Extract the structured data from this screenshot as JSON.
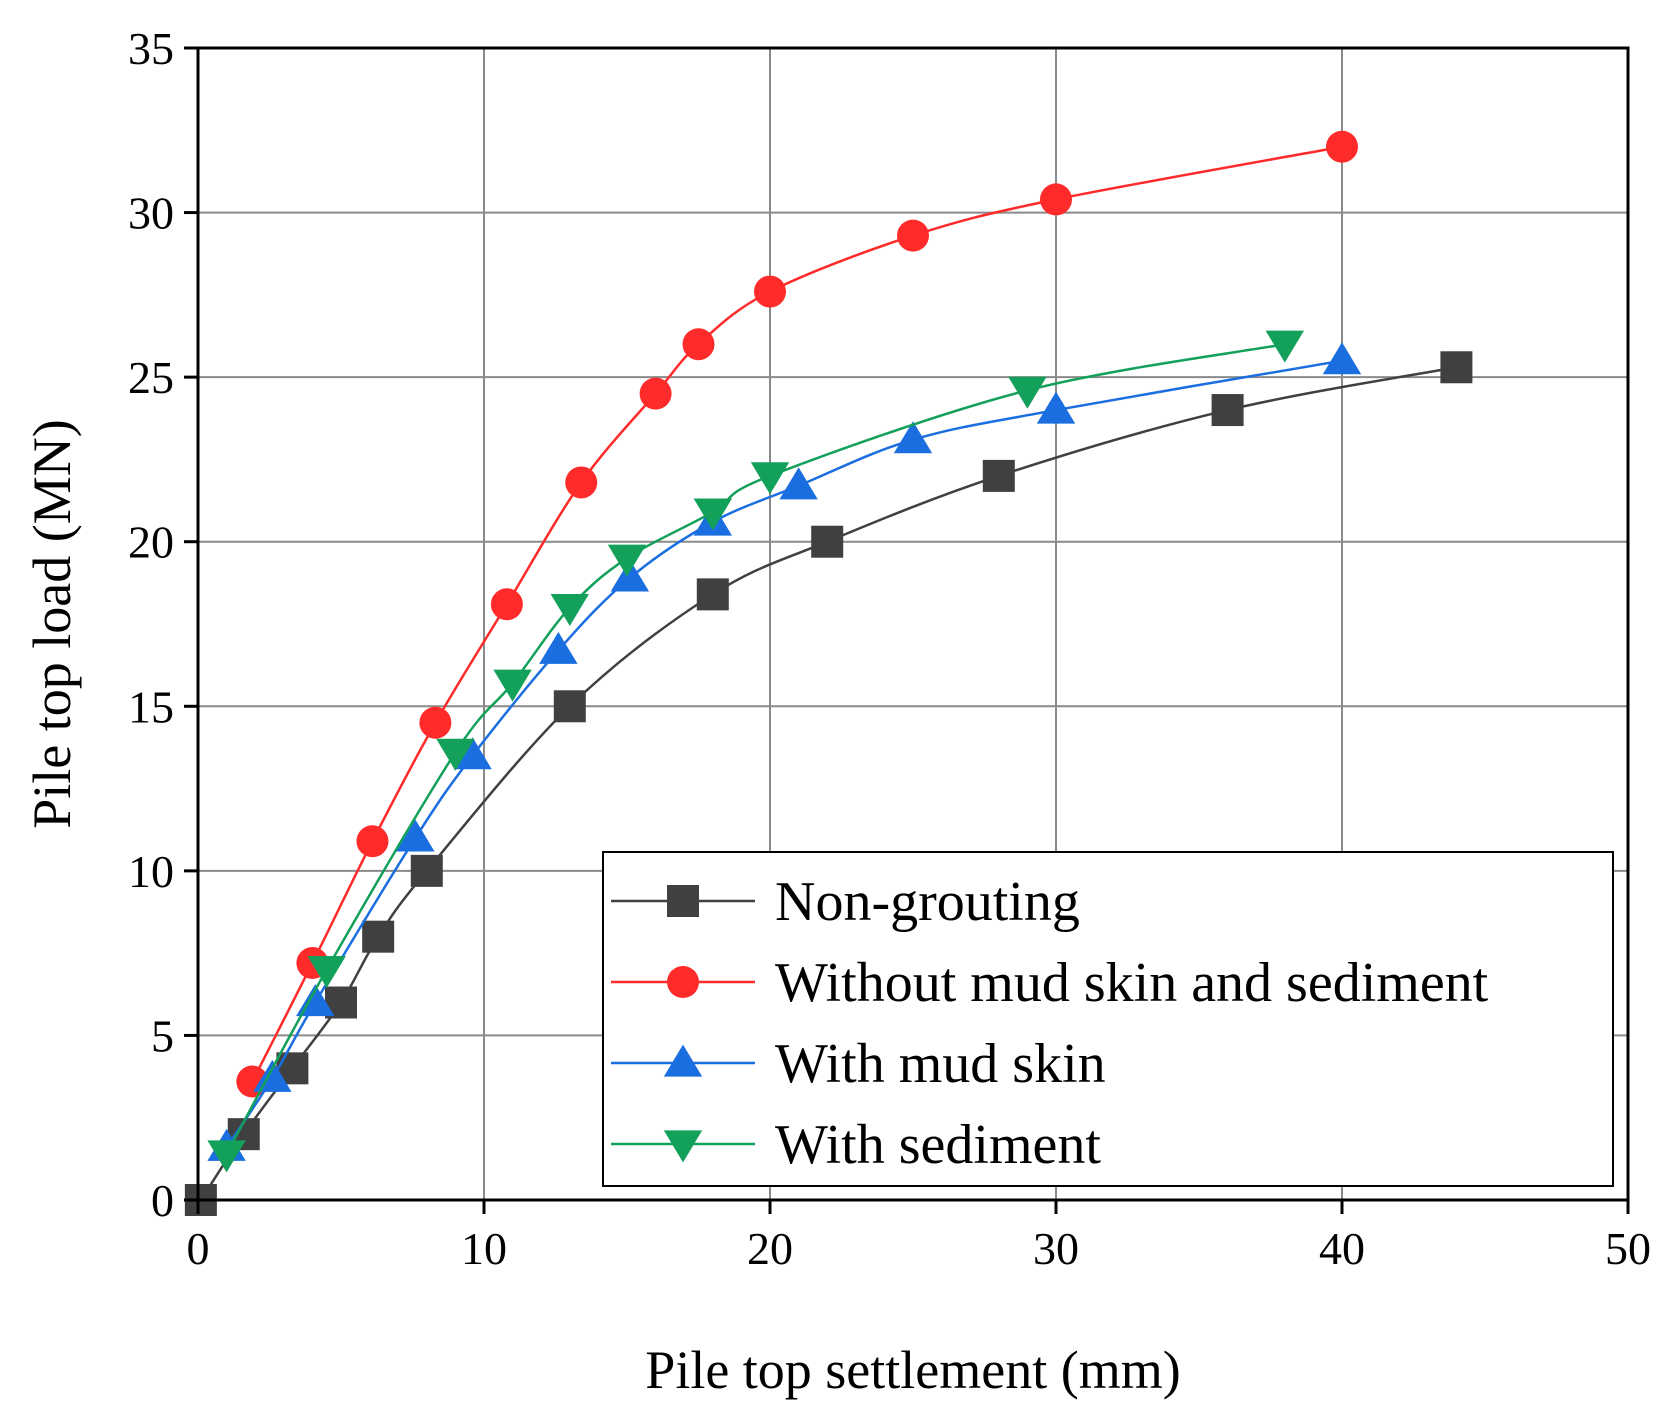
{
  "chart_data": {
    "type": "line",
    "title": "",
    "xlabel": "Pile top settlement (mm)",
    "ylabel": "Pile top load (MN)",
    "xlim": [
      0,
      50
    ],
    "ylim": [
      0,
      35
    ],
    "xticks": [
      0,
      10,
      20,
      30,
      40,
      50
    ],
    "yticks": [
      0,
      5,
      10,
      15,
      20,
      25,
      30,
      35
    ],
    "grid": true,
    "legend_position": "bottom-right",
    "series": [
      {
        "name": "Non-grouting",
        "color": "#404040",
        "marker": "square",
        "x": [
          0.1,
          1.6,
          3.3,
          5.0,
          6.3,
          8.0,
          13.0,
          18.0,
          22.0,
          28.0,
          36.0,
          44.0
        ],
        "y": [
          0.0,
          2.0,
          4.0,
          6.0,
          8.0,
          10.0,
          15.0,
          18.4,
          20.0,
          22.0,
          24.0,
          25.3
        ]
      },
      {
        "name": "Without mud skin and sediment",
        "color": "#ff2a2a",
        "marker": "circle",
        "x": [
          1.9,
          4.0,
          6.1,
          8.3,
          10.8,
          13.4,
          16.0,
          17.5,
          20.0,
          25.0,
          30.0,
          40.0
        ],
        "y": [
          3.6,
          7.2,
          10.9,
          14.5,
          18.1,
          21.8,
          24.5,
          26.0,
          27.6,
          29.3,
          30.4,
          32.0
        ]
      },
      {
        "name": "With mud skin",
        "color": "#1a6ee0",
        "marker": "triangle-up",
        "x": [
          1.0,
          2.6,
          4.1,
          7.6,
          9.6,
          12.6,
          15.1,
          18.0,
          21.0,
          25.0,
          30.0,
          40.0
        ],
        "y": [
          1.6,
          3.7,
          6.0,
          11.0,
          13.5,
          16.7,
          18.9,
          20.6,
          21.7,
          23.1,
          24.0,
          25.5
        ]
      },
      {
        "name": "With sediment",
        "color": "#13a05a",
        "marker": "triangle-down",
        "x": [
          1.0,
          4.5,
          9.0,
          11.0,
          13.0,
          15.0,
          18.0,
          20.0,
          29.0,
          38.0
        ],
        "y": [
          1.4,
          7.0,
          13.6,
          15.7,
          18.0,
          19.5,
          20.9,
          22.0,
          24.6,
          26.0
        ]
      }
    ]
  }
}
